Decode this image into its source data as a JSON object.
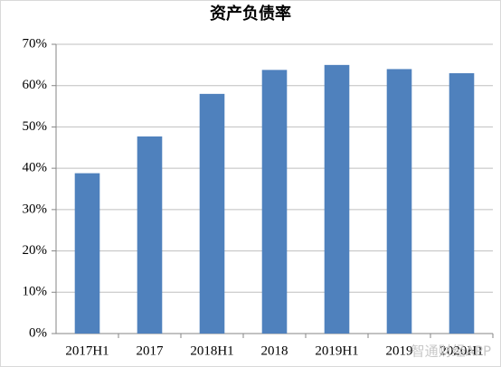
{
  "chart_data": {
    "type": "bar",
    "title": "资产负债率",
    "categories": [
      "2017H1",
      "2017",
      "2018H1",
      "2018",
      "2019H1",
      "2019",
      "2020H1"
    ],
    "values": [
      38.8,
      47.7,
      58,
      63.8,
      65,
      64,
      63
    ],
    "color": "#4f81bd",
    "ylim": [
      0,
      70
    ],
    "yticks": [
      {
        "value": 0,
        "label": "0%"
      },
      {
        "value": 10,
        "label": "10%"
      },
      {
        "value": 20,
        "label": "20%"
      },
      {
        "value": 30,
        "label": "30%"
      },
      {
        "value": 40,
        "label": "40%"
      },
      {
        "value": 50,
        "label": "50%"
      },
      {
        "value": 60,
        "label": "60%"
      },
      {
        "value": 70,
        "label": "70%"
      }
    ],
    "grid": true,
    "watermark": "智通财经APP"
  }
}
